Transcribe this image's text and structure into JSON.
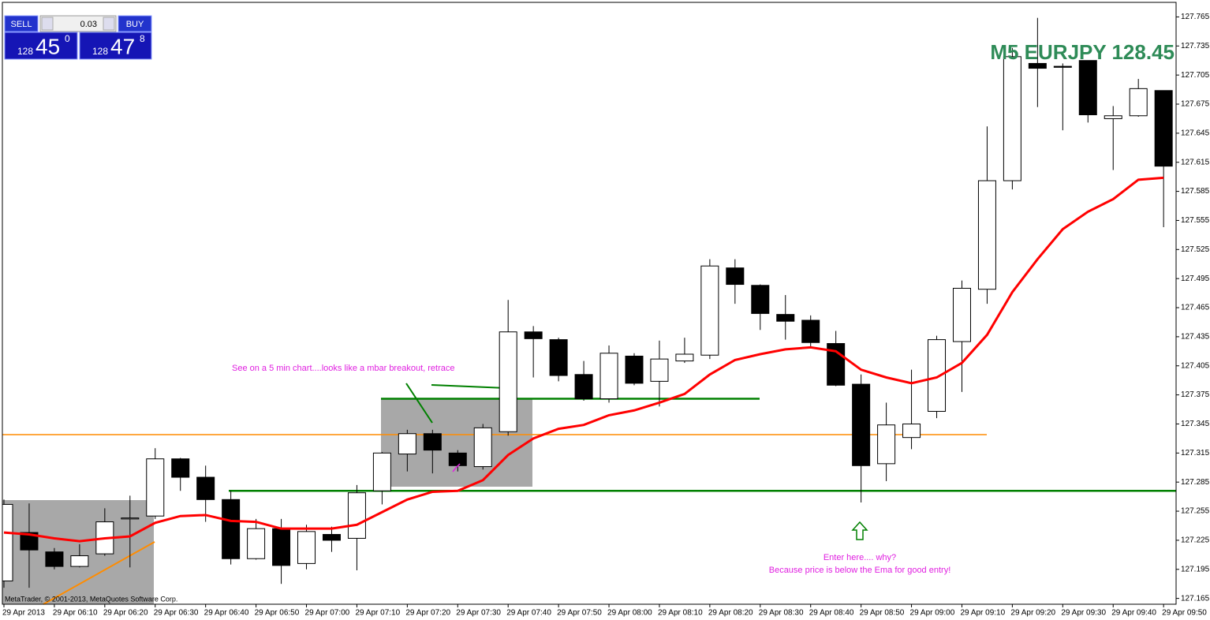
{
  "chart_data": {
    "type": "candlestick",
    "title": "M5 EURJPY 128.45",
    "categories": [
      "29 Apr 2013",
      null,
      "29 Apr 06:10",
      null,
      "29 Apr 06:20",
      null,
      "29 Apr 06:30",
      null,
      "29 Apr 06:40",
      null,
      "29 Apr 06:50",
      null,
      "29 Apr 07:00",
      null,
      "29 Apr 07:10",
      null,
      "29 Apr 07:20",
      null,
      "29 Apr 07:30",
      null,
      "29 Apr 07:40",
      null,
      "29 Apr 07:50",
      null,
      "29 Apr 08:00",
      null,
      "29 Apr 08:10",
      null,
      "29 Apr 08:20",
      null,
      "29 Apr 08:30",
      null,
      "29 Apr 08:40",
      null,
      "29 Apr 08:50",
      null,
      "29 Apr 09:00",
      null,
      "29 Apr 09:10",
      null,
      "29 Apr 09:20",
      null,
      "29 Apr 09:30",
      null,
      "29 Apr 09:40",
      null,
      "29 Apr 09:50"
    ],
    "open": [
      127.183,
      127.233,
      127.213,
      127.198,
      127.211,
      127.247,
      127.25,
      127.309,
      127.29,
      127.267,
      127.206,
      127.237,
      127.201,
      127.231,
      127.227,
      127.276,
      127.314,
      127.335,
      127.315,
      127.301,
      127.337,
      127.44,
      127.432,
      127.396,
      127.371,
      127.415,
      127.389,
      127.41,
      127.416,
      127.506,
      127.488,
      127.458,
      127.452,
      127.428,
      127.386,
      127.304,
      127.331,
      127.358,
      127.43,
      127.484,
      127.596,
      127.717,
      127.714,
      127.72,
      127.66,
      127.663,
      127.689
    ],
    "high": [
      127.267,
      127.263,
      127.217,
      127.221,
      127.258,
      127.271,
      127.32,
      127.31,
      127.302,
      127.276,
      127.247,
      127.247,
      127.241,
      127.239,
      127.282,
      127.316,
      127.339,
      127.339,
      127.318,
      127.345,
      127.473,
      127.446,
      127.434,
      127.41,
      127.426,
      127.418,
      127.431,
      127.434,
      127.515,
      127.515,
      127.489,
      127.478,
      127.457,
      127.441,
      127.396,
      127.367,
      127.401,
      127.436,
      127.493,
      127.652,
      127.733,
      127.764,
      127.717,
      127.72,
      127.673,
      127.701,
      127.689
    ],
    "low": [
      127.176,
      127.176,
      127.195,
      127.197,
      127.209,
      127.197,
      127.247,
      127.276,
      127.244,
      127.2,
      127.205,
      127.18,
      127.195,
      127.213,
      127.194,
      127.262,
      127.296,
      127.294,
      127.296,
      127.298,
      127.333,
      127.393,
      127.389,
      127.369,
      127.367,
      127.385,
      127.363,
      127.408,
      127.412,
      127.469,
      127.442,
      127.432,
      127.424,
      127.384,
      127.264,
      127.286,
      127.319,
      127.351,
      127.378,
      127.469,
      127.587,
      127.672,
      127.648,
      127.656,
      127.607,
      127.662,
      127.548
    ],
    "close": [
      127.262,
      127.215,
      127.198,
      127.209,
      127.244,
      127.248,
      127.309,
      127.29,
      127.267,
      127.206,
      127.237,
      127.199,
      127.234,
      127.225,
      127.274,
      127.315,
      127.335,
      127.318,
      127.302,
      127.341,
      127.44,
      127.433,
      127.395,
      127.371,
      127.418,
      127.387,
      127.412,
      127.417,
      127.508,
      127.489,
      127.459,
      127.451,
      127.429,
      127.385,
      127.302,
      127.344,
      127.345,
      127.432,
      127.485,
      127.596,
      127.724,
      127.712,
      127.713,
      127.664,
      127.663,
      127.691,
      127.611
    ],
    "ema": {
      "color": "#ff0000",
      "values": [
        127.233,
        127.231,
        127.227,
        127.224,
        127.227,
        127.229,
        127.243,
        127.25,
        127.251,
        127.245,
        127.244,
        127.237,
        127.237,
        127.237,
        127.241,
        127.254,
        127.267,
        127.275,
        127.276,
        127.287,
        127.313,
        127.33,
        127.34,
        127.344,
        127.354,
        127.359,
        127.367,
        127.376,
        127.396,
        127.411,
        127.417,
        127.422,
        127.424,
        127.42,
        127.401,
        127.393,
        127.387,
        127.393,
        127.408,
        127.437,
        127.481,
        127.515,
        127.546,
        127.564,
        127.577,
        127.597,
        127.599
      ]
    },
    "levels": [
      {
        "value": 127.334,
        "color": "#ff8c00"
      },
      {
        "value": 127.276,
        "color": "#008000"
      },
      {
        "value": 127.371,
        "color": "#008000"
      }
    ],
    "ylim": [
      127.159,
      127.78
    ],
    "yticks": [
      127.165,
      127.195,
      127.225,
      127.255,
      127.285,
      127.315,
      127.345,
      127.375,
      127.405,
      127.435,
      127.465,
      127.495,
      127.525,
      127.555,
      127.585,
      127.615,
      127.645,
      127.675,
      127.705,
      127.735,
      127.765
    ],
    "annotations": [
      "See on a 5 min chart....looks like a mbar breakout, retrace",
      "Enter here.... why?",
      "Because price is below the Ema for good entry!"
    ],
    "copyright": "MetaTrader, © 2001-2013, MetaQuotes Software Corp."
  },
  "trade_panel": {
    "sell": "SELL",
    "lot": "0.03",
    "buy": "BUY",
    "bid_big": "128",
    "bid_main": "45",
    "bid_small": "0",
    "ask_big": "128",
    "ask_main": "47",
    "ask_small": "8"
  }
}
